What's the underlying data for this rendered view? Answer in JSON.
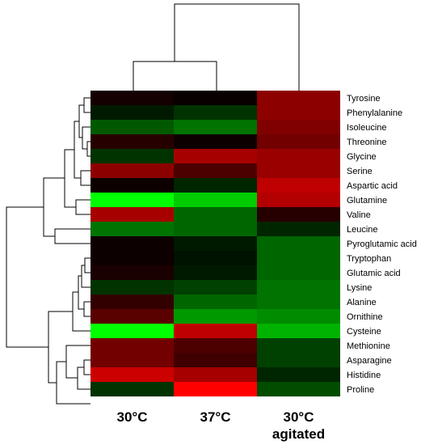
{
  "chart_data": {
    "type": "heatmap",
    "title": "",
    "xlabel": "",
    "ylabel": "",
    "columns": [
      "30°C",
      "37°C",
      "30°C\nagitated"
    ],
    "column_labels": [
      {
        "lines": [
          "30°C"
        ]
      },
      {
        "lines": [
          "37°C"
        ]
      },
      {
        "lines": [
          "30°C",
          "agitated"
        ]
      }
    ],
    "rows": [
      "Tyrosine",
      "Phenylalanine",
      "Isoleucine",
      "Threonine",
      "Glycine",
      "Serine",
      "Aspartic acid",
      "Glutamine",
      "Valine",
      "Leucine",
      "Pyroglutamic acid",
      "Tryptophan",
      "Glutamic acid",
      "Lysine",
      "Alanine",
      "Ornithine",
      "Cysteine",
      "Methionine",
      "Asparagine",
      "Histidine",
      "Proline"
    ],
    "color_scale": {
      "negative": "#00ff00",
      "zero": "#000000",
      "positive": "#ff0000",
      "range": [
        -1,
        1
      ]
    },
    "values": [
      [
        0.08,
        0.03,
        0.55
      ],
      [
        -0.1,
        -0.2,
        0.55
      ],
      [
        -0.35,
        -0.45,
        0.5
      ],
      [
        0.15,
        0.05,
        0.45
      ],
      [
        -0.2,
        0.65,
        0.6
      ],
      [
        0.55,
        0.3,
        0.6
      ],
      [
        0.05,
        -0.15,
        0.75
      ],
      [
        -1.0,
        -0.8,
        0.7
      ],
      [
        0.65,
        -0.4,
        0.15
      ],
      [
        -0.45,
        -0.4,
        -0.15
      ],
      [
        0.05,
        -0.1,
        -0.4
      ],
      [
        0.05,
        -0.07,
        -0.4
      ],
      [
        0.1,
        -0.1,
        -0.4
      ],
      [
        -0.2,
        -0.25,
        -0.45
      ],
      [
        0.2,
        -0.4,
        -0.45
      ],
      [
        0.35,
        -0.6,
        -0.55
      ],
      [
        -1.0,
        0.75,
        -0.7
      ],
      [
        0.45,
        0.3,
        -0.25
      ],
      [
        0.45,
        0.25,
        -0.25
      ],
      [
        0.8,
        0.65,
        -0.15
      ],
      [
        -0.2,
        1.0,
        -0.3
      ]
    ]
  }
}
